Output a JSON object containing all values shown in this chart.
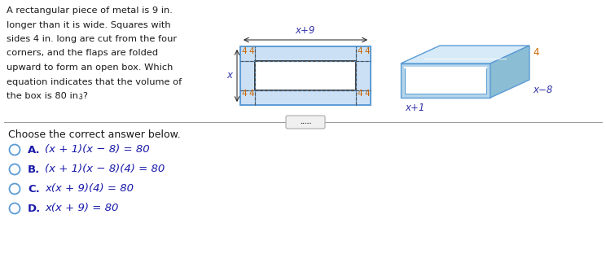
{
  "problem_text_lines": [
    "A rectangular piece of metal is 9 in.",
    "longer than it is wide. Squares with",
    "sides 4 in. long are cut from the four",
    "corners, and the flaps are folded",
    "upward to form an open box. Which",
    "equation indicates that the volume of"
  ],
  "problem_last_line_base": "the box is 80 in.",
  "problem_last_superscript": "3",
  "problem_last_suffix": "?",
  "choose_text": "Choose the correct answer below.",
  "answers": [
    {
      "label": "A.",
      "text": "(x + 1)(x − 8) = 80"
    },
    {
      "label": "B.",
      "text": "(x + 1)(x − 8)(4) = 80"
    },
    {
      "label": "C.",
      "text": "x(x + 9)(4) = 80"
    },
    {
      "label": "D.",
      "text": "x(x + 9) = 80"
    }
  ],
  "flat_label_top": "x+9",
  "flat_label_left": "x",
  "box_label_length": "x+1",
  "box_label_width": "x−8",
  "box_label_height": "4",
  "divider_dots": ".....",
  "bg_color": "#ffffff",
  "text_color": "#1a1a1a",
  "label_color": "#3333aa",
  "number_color": "#cc6600",
  "flat_fill": "#cce0f5",
  "flat_border": "#5b9bd5",
  "box_color_light": "#d6eaf8",
  "box_color_mid": "#b3d4ea",
  "box_color_dark": "#8bbdd4",
  "box_edge": "#5b9bd5",
  "answer_circle_color": "#5b9bd5",
  "answer_label_color": "#1a1aaa",
  "answer_text_color": "#1a1aaa",
  "divider_color": "#999999",
  "pill_bg": "#f0f0f0",
  "pill_border": "#aaaaaa"
}
